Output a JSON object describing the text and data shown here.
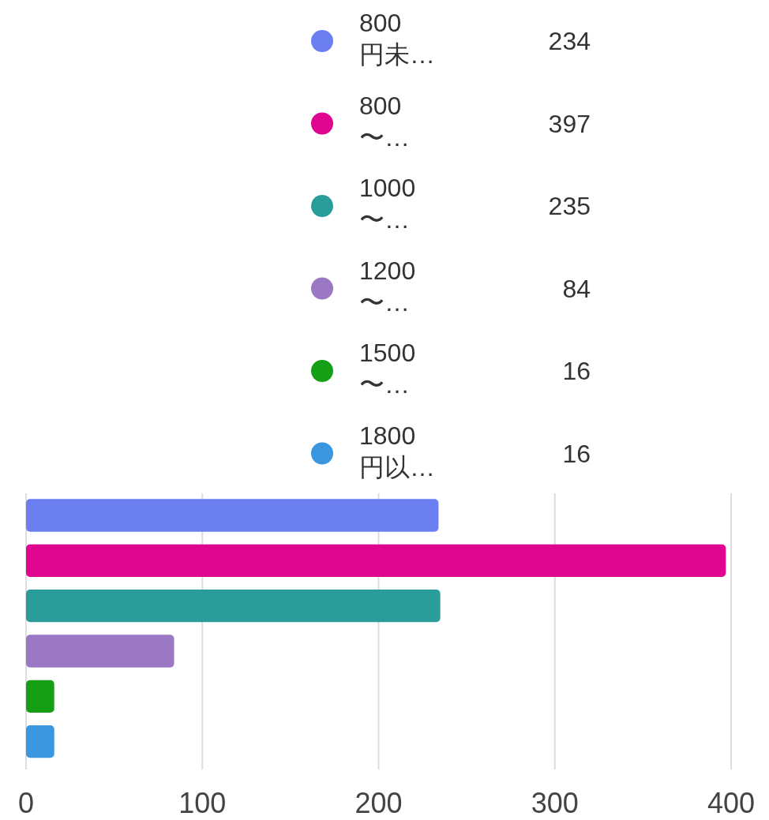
{
  "chart_data": {
    "type": "bar",
    "orientation": "horizontal",
    "categories": [
      null
    ],
    "series": [
      {
        "name": "800 円未…",
        "color": "#6b7ff0",
        "values": [
          234
        ]
      },
      {
        "name": "800 〜…",
        "color": "#e0058f",
        "values": [
          397
        ]
      },
      {
        "name": "1000 〜…",
        "color": "#2a9d9b",
        "values": [
          235
        ]
      },
      {
        "name": "1200 〜…",
        "color": "#9a78c4",
        "values": [
          84
        ]
      },
      {
        "name": "1500 〜…",
        "color": "#169e16",
        "values": [
          16
        ]
      },
      {
        "name": "1800 円以…",
        "color": "#3b96e0",
        "values": [
          16
        ]
      }
    ],
    "annotations": [
      "234",
      "397",
      "235",
      "84",
      "16",
      "16"
    ],
    "xlim": [
      0,
      400
    ],
    "xticks": [
      0,
      100,
      200,
      300,
      400
    ],
    "grid": "x",
    "legend": "top",
    "tick_labels": "x"
  }
}
